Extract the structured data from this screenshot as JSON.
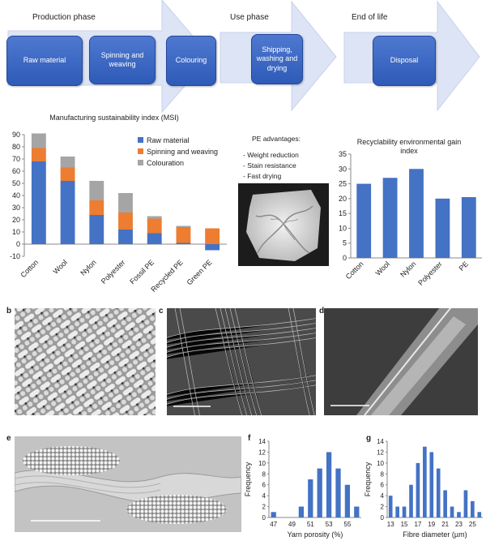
{
  "top": {
    "phases": [
      "Production phase",
      "Use phase",
      "End of life"
    ],
    "boxes": [
      "Raw material",
      "Spinning and weaving",
      "Colouring",
      "Shipping, washing and drying",
      "Disposal"
    ],
    "pe_title": "PE advantages:",
    "pe_items": [
      "- Weight reduction",
      "- Stain resistance",
      "- Fast drying"
    ]
  },
  "msi_chart": {
    "type": "bar",
    "title": "Manufacturing sustainability index (MSI)",
    "categories": [
      "Cotton",
      "Wool",
      "Nylon",
      "Polyester",
      "Fossil PE",
      "Recycled PE",
      "Green PE"
    ],
    "series": [
      {
        "name": "Raw material",
        "color": "#4472c4",
        "values": [
          68,
          52,
          24,
          12,
          9,
          1,
          -5
        ]
      },
      {
        "name": "Spinning and weaving",
        "color": "#ed7d31",
        "values": [
          11,
          11,
          12,
          14,
          12,
          13,
          13
        ]
      },
      {
        "name": "Colouration",
        "color": "#a5a5a5",
        "values": [
          12,
          9,
          16,
          16,
          2,
          1,
          0
        ]
      }
    ],
    "yticks": [
      -10,
      0,
      10,
      20,
      30,
      40,
      50,
      60,
      70,
      80,
      90
    ],
    "ylim": [
      -10,
      90
    ]
  },
  "recyc_chart": {
    "type": "bar",
    "title": "Recyclability environmental gain index",
    "categories": [
      "Cotton",
      "Wool",
      "Nylon",
      "Polyester",
      "PE"
    ],
    "values": [
      25,
      27,
      30,
      20,
      20.5
    ],
    "color": "#4472c4",
    "yticks": [
      0,
      5,
      10,
      15,
      20,
      25,
      30,
      35
    ],
    "ylim": [
      0,
      35
    ]
  },
  "panels": {
    "b": "b",
    "c": "c",
    "d": "d",
    "e": "e",
    "f": "f",
    "g": "g"
  },
  "porosity_chart": {
    "type": "bar",
    "xlabel": "Yarn porosity (%)",
    "ylabel": "Frequency",
    "x": [
      47,
      48,
      49,
      50,
      51,
      52,
      53,
      54,
      55,
      56
    ],
    "values": [
      1,
      0,
      0,
      2,
      7,
      9,
      12,
      9,
      6,
      2
    ],
    "xticks": [
      47,
      49,
      51,
      53,
      55
    ],
    "yticks": [
      0,
      2,
      4,
      6,
      8,
      10,
      12,
      14
    ],
    "ylim": [
      0,
      14
    ],
    "color": "#4472c4"
  },
  "diameter_chart": {
    "type": "bar",
    "xlabel": "Fibre diameter (µm)",
    "ylabel": "Frequency",
    "x": [
      13,
      14,
      15,
      16,
      17,
      18,
      19,
      20,
      21,
      22,
      23,
      24,
      25,
      26
    ],
    "values": [
      4,
      2,
      2,
      6,
      10,
      13,
      12,
      9,
      5,
      2,
      1,
      5,
      3,
      1
    ],
    "xticks": [
      13,
      15,
      17,
      19,
      21,
      23,
      25
    ],
    "yticks": [
      0,
      2,
      4,
      6,
      8,
      10,
      12,
      14
    ],
    "ylim": [
      0,
      14
    ],
    "color": "#4472c4"
  }
}
